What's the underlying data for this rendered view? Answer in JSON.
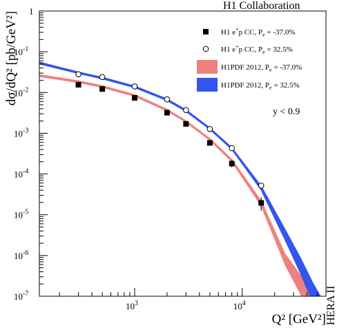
{
  "chart_data": {
    "type": "scatter",
    "header": "H1 Collaboration",
    "side_label": "HERA II",
    "xlabel": "Q² [GeV²]",
    "ylabel": "dσ/dQ² [pb/GeV²]",
    "x_scale": "log",
    "y_scale": "log",
    "xlim": [
      130,
      60000
    ],
    "ylim": [
      1e-07,
      1
    ],
    "annotation": "y < 0.9",
    "x_ticks": [
      {
        "value": 1000,
        "base": "10",
        "exp": "3"
      },
      {
        "value": 10000,
        "base": "10",
        "exp": "4"
      }
    ],
    "y_ticks": [
      {
        "value": 1,
        "base": "1",
        "exp": ""
      },
      {
        "value": 0.1,
        "base": "10",
        "exp": "-1"
      },
      {
        "value": 0.01,
        "base": "10",
        "exp": "-2"
      },
      {
        "value": 0.001,
        "base": "10",
        "exp": "-3"
      },
      {
        "value": 0.0001,
        "base": "10",
        "exp": "-4"
      },
      {
        "value": 1e-05,
        "base": "10",
        "exp": "-5"
      },
      {
        "value": 1e-06,
        "base": "10",
        "exp": "-6"
      },
      {
        "value": 1e-07,
        "base": "10",
        "exp": "-7"
      }
    ],
    "legend": {
      "placement": "top-right",
      "entries": [
        {
          "id": "neg_data",
          "label_main": "H1 e",
          "label_sup": "+",
          "label_mid": "p CC, P",
          "label_sub": "e",
          "label_end": " = -37.0%"
        },
        {
          "id": "pos_data",
          "label_main": "H1 e",
          "label_sup": "+",
          "label_mid": "p CC, P",
          "label_sub": "e",
          "label_end": " = 32.5%"
        },
        {
          "id": "neg_band",
          "label_main": "H1PDF 2012, P",
          "label_sup": "",
          "label_mid": "",
          "label_sub": "e",
          "label_end": " = -37.0%"
        },
        {
          "id": "pos_band",
          "label_main": "H1PDF 2012, P",
          "label_sup": "",
          "label_mid": "",
          "label_sub": "e",
          "label_end": " = 32.5%"
        }
      ]
    },
    "series": [
      {
        "id": "neg_data",
        "marker": "filled-square",
        "color": "#000000",
        "points": [
          {
            "x": 300,
            "y": 0.0155
          },
          {
            "x": 500,
            "y": 0.0122
          },
          {
            "x": 1000,
            "y": 0.0074
          },
          {
            "x": 2000,
            "y": 0.0032
          },
          {
            "x": 3000,
            "y": 0.0017
          },
          {
            "x": 5000,
            "y": 0.00058
          },
          {
            "x": 8000,
            "y": 0.00018,
            "err_up": 0.00022,
            "err_lo": 0.000145
          },
          {
            "x": 15000,
            "y": 1.95e-05,
            "err_up": 2.7e-05,
            "err_lo": 1.25e-05
          }
        ]
      },
      {
        "id": "pos_data",
        "marker": "open-circle",
        "color": "#000000",
        "points": [
          {
            "x": 300,
            "y": 0.028
          },
          {
            "x": 500,
            "y": 0.024
          },
          {
            "x": 1000,
            "y": 0.0141
          },
          {
            "x": 2000,
            "y": 0.0068
          },
          {
            "x": 3000,
            "y": 0.0037
          },
          {
            "x": 5000,
            "y": 0.00127
          },
          {
            "x": 8000,
            "y": 0.00043
          },
          {
            "x": 15000,
            "y": 5.2e-05
          }
        ]
      },
      {
        "id": "neg_band",
        "type": "band",
        "color": "#f08080",
        "points": [
          {
            "x": 130,
            "lo": 0.0245,
            "hi": 0.0275
          },
          {
            "x": 300,
            "lo": 0.0175,
            "hi": 0.0195
          },
          {
            "x": 500,
            "lo": 0.0133,
            "hi": 0.0148
          },
          {
            "x": 1000,
            "lo": 0.008,
            "hi": 0.0089
          },
          {
            "x": 2000,
            "lo": 0.0035,
            "hi": 0.0039
          },
          {
            "x": 3000,
            "lo": 0.00185,
            "hi": 0.00205
          },
          {
            "x": 5000,
            "lo": 0.00067,
            "hi": 0.00075
          },
          {
            "x": 8000,
            "lo": 0.0002,
            "hi": 0.00023
          },
          {
            "x": 15000,
            "lo": 1.65e-05,
            "hi": 2.2e-05
          },
          {
            "x": 25000,
            "lo": 6e-07,
            "hi": 1.1e-06
          },
          {
            "x": 35000,
            "lo": 1.1e-07,
            "hi": 3.2e-07
          },
          {
            "x": 42000,
            "lo": 3e-08,
            "hi": 1.2e-07
          }
        ]
      },
      {
        "id": "pos_band",
        "type": "band",
        "color": "#3355ee",
        "points": [
          {
            "x": 130,
            "lo": 0.05,
            "hi": 0.056
          },
          {
            "x": 300,
            "lo": 0.029,
            "hi": 0.032
          },
          {
            "x": 500,
            "lo": 0.0215,
            "hi": 0.0238
          },
          {
            "x": 1000,
            "lo": 0.0131,
            "hi": 0.0145
          },
          {
            "x": 2000,
            "lo": 0.0063,
            "hi": 0.007
          },
          {
            "x": 3000,
            "lo": 0.0034,
            "hi": 0.0038
          },
          {
            "x": 5000,
            "lo": 0.00123,
            "hi": 0.00137
          },
          {
            "x": 8000,
            "lo": 0.0004,
            "hi": 0.00045
          },
          {
            "x": 15000,
            "lo": 4e-05,
            "hi": 5.1e-05
          },
          {
            "x": 25000,
            "lo": 2.4e-06,
            "hi": 4.4e-06
          },
          {
            "x": 35000,
            "lo": 3.5e-07,
            "hi": 8.5e-07
          },
          {
            "x": 45000,
            "lo": 7e-08,
            "hi": 2.2e-07
          },
          {
            "x": 56000,
            "lo": 2e-08,
            "hi": 8e-08
          }
        ]
      }
    ]
  }
}
